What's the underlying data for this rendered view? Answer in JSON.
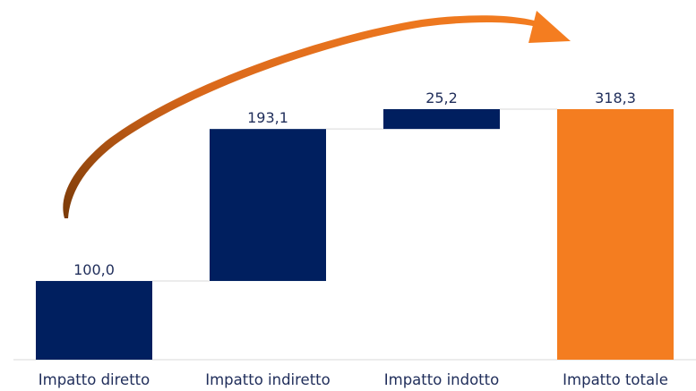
{
  "chart_data": {
    "type": "bar",
    "subtype": "waterfall",
    "categories": [
      "Impatto diretto",
      "Impatto indiretto",
      "Impatto indotto",
      "Impatto totale"
    ],
    "values": [
      100.0,
      193.1,
      25.2,
      318.3
    ],
    "value_labels": [
      "100,0",
      "193,1",
      "25,2",
      "318,3"
    ],
    "bar_kinds": [
      "increment",
      "increment",
      "increment",
      "total"
    ],
    "ylim": [
      0,
      318.3
    ],
    "grid": false,
    "legend": "none",
    "title": "",
    "xlabel": "",
    "ylabel": "",
    "annotation": "curved-arrow-from-first-to-total",
    "colors": {
      "increment": "#001f5f",
      "total": "#f47d20",
      "text": "#1f2d5a",
      "connector": "#d9d9d9"
    }
  }
}
